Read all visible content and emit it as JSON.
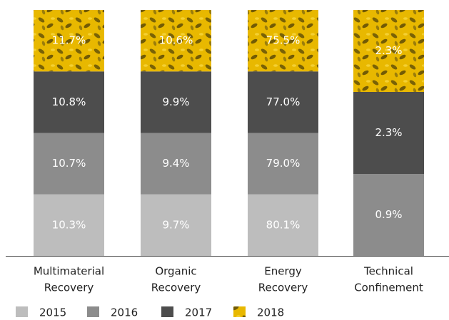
{
  "chart_data": {
    "type": "bar",
    "stacked": true,
    "categories": [
      [
        "Multimaterial",
        "Recovery"
      ],
      [
        "Organic",
        "Recovery"
      ],
      [
        "Energy",
        "Recovery"
      ],
      [
        "Technical",
        "Confinement"
      ]
    ],
    "series": [
      {
        "name": "2015",
        "color": "#bdbdbd",
        "values": [
          10.3,
          9.7,
          80.1,
          null
        ],
        "value_labels": [
          "10.3%",
          "9.7%",
          "80.1%",
          null
        ]
      },
      {
        "name": "2016",
        "color": "#8c8c8c",
        "values": [
          10.7,
          9.4,
          79.0,
          0.9
        ],
        "value_labels": [
          "10.7%",
          "9.4%",
          "79.0%",
          "0.9%"
        ]
      },
      {
        "name": "2017",
        "color": "#4d4d4d",
        "values": [
          10.8,
          9.9,
          77.0,
          2.3
        ],
        "value_labels": [
          "10.8%",
          "9.9%",
          "77.0%",
          "2.3%"
        ]
      },
      {
        "name": "2018",
        "color": "#e8b800",
        "values": [
          11.7,
          10.6,
          75.5,
          2.3
        ],
        "value_labels": [
          "11.7%",
          "10.6%",
          "75.5%",
          "2.3%"
        ]
      }
    ]
  }
}
